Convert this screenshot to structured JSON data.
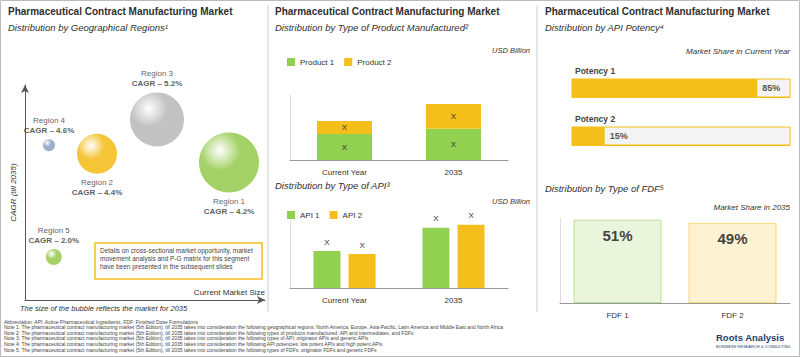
{
  "chart_data": [
    {
      "type": "scatter",
      "title": "Pharmaceutical Contract Manufacturing Market",
      "subtitle": "Distribution by Geographical Regions¹",
      "xlabel": "Current Market Size",
      "ylabel": "CAGR (till 2035)",
      "xlim": [
        0,
        100
      ],
      "xticks": [],
      "ylim": [
        1,
        6
      ],
      "yticks": [],
      "grid": false,
      "tick_labels": false,
      "data_labels": true,
      "series": [
        {
          "name": "Region 1",
          "color": "#8cc63f",
          "x": [
            85
          ],
          "values": [
            4.2
          ],
          "size": [
            60
          ],
          "value_labels": [
            "CAGR – 4.2%"
          ]
        },
        {
          "name": "Region 2",
          "color": "#f2b705",
          "x": [
            30
          ],
          "values": [
            4.4
          ],
          "size": [
            40
          ],
          "value_labels": [
            "CAGR – 4.4%"
          ]
        },
        {
          "name": "Region 3",
          "color": "#b3b3b3",
          "x": [
            55
          ],
          "values": [
            5.2
          ],
          "size": [
            54
          ],
          "value_labels": [
            "CAGR – 5.2%"
          ]
        },
        {
          "name": "Region 4",
          "color": "#7f9cc0",
          "x": [
            10
          ],
          "values": [
            4.6
          ],
          "size": [
            12
          ],
          "value_labels": [
            "CAGR – 4.6%"
          ]
        },
        {
          "name": "Region 5",
          "color": "#8cc63f",
          "x": [
            12
          ],
          "values": [
            2.0
          ],
          "size": [
            16
          ],
          "value_labels": [
            "CAGR – 2.0%"
          ]
        }
      ],
      "annotations": [
        "Details on cross-sectional market opportunity, market movement analysis and P-G matrix for this segment have been presented in the subsequent slides",
        "The size of the bubble reflects the market for 2035"
      ]
    },
    {
      "type": "bar",
      "title": "Pharmaceutical Contract Manufacturing Market",
      "subtitle": "Distribution by Type of Product Manufactured²",
      "annotations": [
        "USD Billion"
      ],
      "categories": [
        "Current Year",
        "2035"
      ],
      "series": [
        {
          "name": "Product 1",
          "color": "#92d050",
          "values": [
            20,
            24
          ],
          "value_labels": [
            "X",
            "X"
          ]
        },
        {
          "name": "Product 2",
          "color": "#f4bf1a",
          "values": [
            10,
            19
          ],
          "value_labels": [
            "X",
            "X"
          ]
        }
      ],
      "stacked": true,
      "ylim": [
        0,
        50
      ],
      "yticks": [],
      "grid": false,
      "legend": "top-left",
      "data_labels": true,
      "tick_labels": "x"
    },
    {
      "type": "bar",
      "subtitle": "Distribution by Type of API³",
      "annotations": [
        "USD Billion"
      ],
      "categories": [
        "Current Year",
        "2035"
      ],
      "series": [
        {
          "name": "API 1",
          "color": "#92d050",
          "values": [
            38,
            62
          ],
          "value_labels": [
            "X",
            "X"
          ]
        },
        {
          "name": "API 2",
          "color": "#f4bf1a",
          "values": [
            35,
            65
          ],
          "value_labels": [
            "X",
            "X"
          ]
        }
      ],
      "stacked": false,
      "ylim": [
        0,
        70
      ],
      "yticks": [],
      "grid": false,
      "legend": "top-left",
      "data_labels": true,
      "tick_labels": "x"
    },
    {
      "type": "bar",
      "title": "Pharmaceutical Contract Manufacturing Market",
      "subtitle": "Distribution by API Potency⁴",
      "annotations": [
        "Market Share in Current Year"
      ],
      "orientation": "horizontal",
      "categories": [
        "Potency 1",
        "Potency 2"
      ],
      "values": [
        85,
        15
      ],
      "value_labels": [
        "85%",
        "15%"
      ],
      "color": "#f4bf1a",
      "xlim": [
        0,
        100
      ],
      "xticks": [],
      "grid": false,
      "data_labels": true
    },
    {
      "type": "bar",
      "subtitle": "Distribution by Type of FDF⁵",
      "annotations": [
        "Market Share in 2035"
      ],
      "categories": [
        "FDF 1",
        "FDF 2"
      ],
      "values": [
        51,
        49
      ],
      "value_labels": [
        "51%",
        "49%"
      ],
      "colors": [
        "#92d050",
        "#f4bf1a"
      ],
      "ylim": [
        0,
        52
      ],
      "yticks": [],
      "grid": false,
      "data_labels": true,
      "tick_labels": "x"
    }
  ],
  "footnotes": [
    "Abbreviation: API: Active Pharmaceutical Ingredients, FDF: Finished Dose Formulations",
    "Note 1: The pharmaceutical contract manufacturing market (5th Edition), till 2035 takes into consideration the following geographical regions: North America, Europe, Asia-Pacific, Latin America and Middle East and North Africa",
    "Note 2: The pharmaceutical contract manufacturing market (5th Edition), till 2035 takes into consideration the following types of products manufactured: API and intermediates, and FDFs",
    "Note 3: The pharmaceutical contract manufacturing market (5th Edition), till 2035 takes into consideration the following types of API: originator APIs and generic APIs",
    "Note 4: The pharmaceutical contract manufacturing market (5th Edition), till 2035 takes into consideration the following API potencies: low potent APIs and high potent APIs",
    "Note 5: The pharmaceutical contract manufacturing market (5th Edition), till 2035 takes into consideration the following types of FDFs: originator FDFs and generic FDFs"
  ],
  "logo": [
    "Roots Analysis",
    "BUSINESS RESEARCH & CONSULTING"
  ]
}
